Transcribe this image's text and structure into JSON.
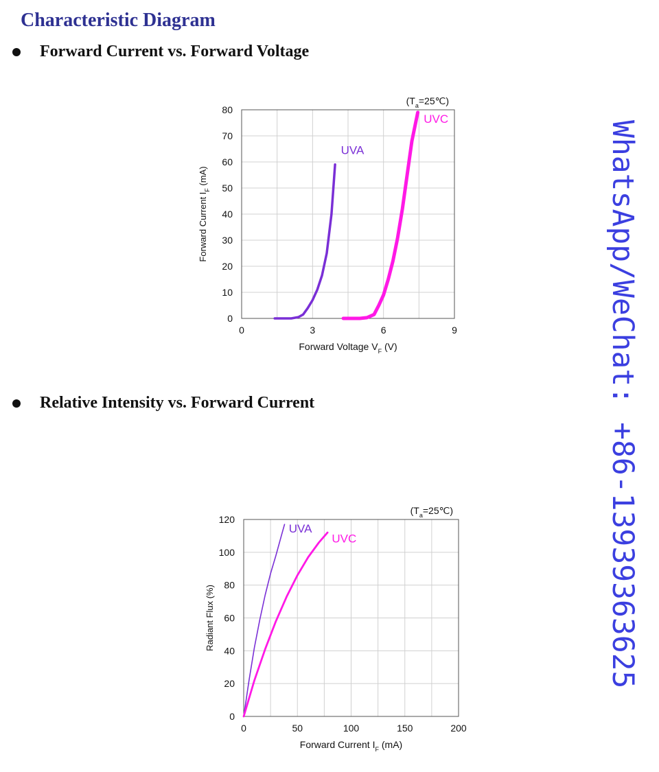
{
  "page": {
    "title": "Characteristic Diagram",
    "section1_title": "Forward Current vs. Forward Voltage",
    "section2_title": "Relative Intensity vs. Forward Current",
    "watermark": "WhatsApp/WeChat: +86-13939363625"
  },
  "colors": {
    "uva": "#7a2fd6",
    "uvc": "#ff19e6",
    "title": "#2e3192",
    "watermark": "#3b3fe0"
  },
  "chart_data": [
    {
      "type": "line",
      "note": "(Ta=25℃)",
      "xlabel": "Forward Voltage VF (V)",
      "ylabel": "Forward Current IF (mA)",
      "xlim": [
        0,
        9
      ],
      "ylim": [
        0,
        80
      ],
      "xticks": [
        "0",
        "3",
        "6",
        "9"
      ],
      "yticks": [
        "0",
        "10",
        "20",
        "30",
        "40",
        "50",
        "60",
        "70",
        "80"
      ],
      "grid": true,
      "series": [
        {
          "name": "UVA",
          "x": [
            1.4,
            2.1,
            2.4,
            2.6,
            2.8,
            3.0,
            3.2,
            3.4,
            3.6,
            3.8,
            3.95
          ],
          "y": [
            0,
            0,
            0.5,
            1.5,
            4,
            7,
            11,
            16.5,
            25,
            40,
            59
          ]
        },
        {
          "name": "UVC",
          "x": [
            4.3,
            5.0,
            5.3,
            5.6,
            5.8,
            6.0,
            6.2,
            6.4,
            6.6,
            6.8,
            7.0,
            7.2,
            7.45
          ],
          "y": [
            0,
            0,
            0.3,
            1.5,
            5,
            9,
            15,
            22,
            31,
            42,
            55,
            68,
            79
          ]
        }
      ]
    },
    {
      "type": "line",
      "note": "(Ta=25℃)",
      "xlabel": "Forward Current IF (mA)",
      "ylabel": "Radiant Flux (%)",
      "xlim": [
        0,
        200
      ],
      "ylim": [
        0,
        120
      ],
      "xticks": [
        "0",
        "50",
        "100",
        "150",
        "200"
      ],
      "yticks": [
        "0",
        "20",
        "40",
        "60",
        "80",
        "100",
        "120"
      ],
      "grid": true,
      "series": [
        {
          "name": "UVA",
          "x": [
            0,
            5,
            10,
            15,
            20,
            25,
            30,
            35,
            38
          ],
          "y": [
            0,
            22,
            42,
            59,
            74,
            87,
            98,
            110,
            117
          ]
        },
        {
          "name": "UVC",
          "x": [
            0,
            10,
            20,
            30,
            40,
            50,
            60,
            70,
            78
          ],
          "y": [
            0,
            22,
            41,
            58,
            73,
            86,
            97,
            106,
            112
          ]
        }
      ]
    }
  ]
}
